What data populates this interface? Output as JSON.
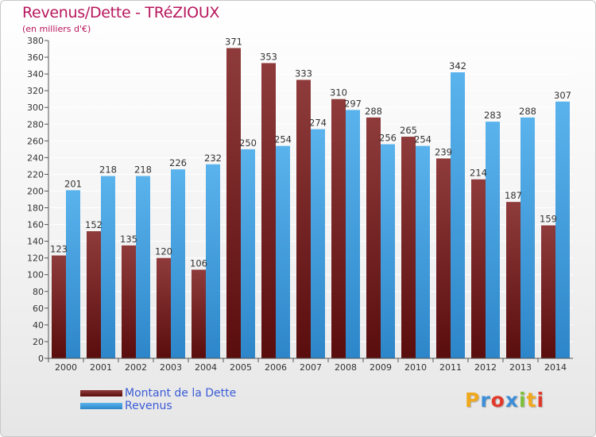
{
  "header": {
    "title": "Revenus/Dette - TRéZIOUX",
    "subtitle": "(en milliers d'€)"
  },
  "legend": {
    "items": [
      {
        "label": "Montant de la Dette"
      },
      {
        "label": "Revenus"
      }
    ]
  },
  "logo": {
    "text": "Proxiti",
    "letters": [
      "P",
      "r",
      "o",
      "x",
      "i",
      "t",
      "i"
    ],
    "colors": [
      "#f0a81d",
      "#3d8ed8",
      "#e23a2a",
      "#3d8ed8",
      "#7cbf3a",
      "#f0a81d",
      "#e23a2a"
    ]
  },
  "colors": {
    "dette_light": "#8f3b3b",
    "dette_dark": "#5a0d0d",
    "revenus_light": "#5ab3ec",
    "revenus_dark": "#2d86c9",
    "grid": "#ffffff",
    "axis_text": "#333333",
    "title": "#b8175d"
  },
  "chart_data": {
    "type": "bar",
    "title": "Revenus/Dette - TRéZIOUX",
    "ylabel": "(en milliers d'€)",
    "xlabel": "",
    "categories": [
      "2000",
      "2001",
      "2002",
      "2003",
      "2004",
      "2005",
      "2006",
      "2007",
      "2008",
      "2009",
      "2010",
      "2011",
      "2012",
      "2013",
      "2014"
    ],
    "series": [
      {
        "name": "Montant de la Dette",
        "values": [
          123,
          152,
          135,
          120,
          106,
          371,
          353,
          333,
          310,
          288,
          265,
          239,
          214,
          187,
          159
        ]
      },
      {
        "name": "Revenus",
        "values": [
          201,
          218,
          218,
          226,
          232,
          250,
          254,
          274,
          297,
          256,
          254,
          342,
          283,
          288,
          307
        ]
      }
    ],
    "ylim": [
      0,
      380
    ],
    "yticks": [
      0,
      20,
      40,
      60,
      80,
      100,
      120,
      140,
      160,
      180,
      200,
      220,
      240,
      260,
      280,
      300,
      320,
      340,
      360,
      380
    ],
    "grid": true,
    "legend_position": "bottom-left"
  }
}
